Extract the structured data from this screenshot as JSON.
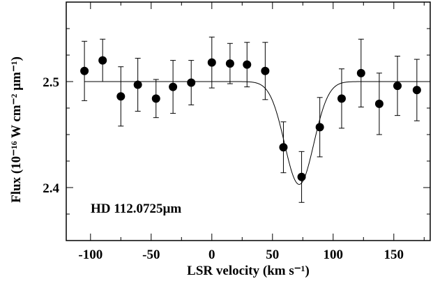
{
  "chart_data": {
    "type": "scatter",
    "title": "",
    "xlabel": "LSR velocity (km s⁻¹)",
    "ylabel": "Flux (10⁻¹⁶ W cm⁻² µm⁻¹)",
    "annotation": "HD 112.0725µm",
    "xlim": [
      -120,
      180
    ],
    "ylim": [
      2.35,
      2.575
    ],
    "x_ticks": [
      -100,
      -50,
      0,
      50,
      100,
      150
    ],
    "x_tick_labels": [
      "-100",
      "-50",
      "0",
      "50",
      "100",
      "150"
    ],
    "y_ticks": [
      2.4,
      2.5
    ],
    "y_tick_labels": [
      "2.4",
      "2.5"
    ],
    "grid": false,
    "legend": "none",
    "colors": {
      "marker": "#000000",
      "fit": "#000000",
      "axes": "#000000"
    },
    "series": [
      {
        "type": "points_with_errorbars",
        "x": [
          -105,
          -90,
          -75,
          -61,
          -46,
          -32,
          -17,
          0,
          15,
          29,
          44,
          59,
          74,
          89,
          107,
          123,
          138,
          153,
          169
        ],
        "y": [
          2.51,
          2.52,
          2.486,
          2.497,
          2.484,
          2.495,
          2.499,
          2.518,
          2.517,
          2.516,
          2.51,
          2.438,
          2.41,
          2.457,
          2.484,
          2.508,
          2.479,
          2.496,
          2.492
        ],
        "err": [
          0.028,
          0.02,
          0.028,
          0.025,
          0.018,
          0.025,
          0.021,
          0.024,
          0.019,
          0.021,
          0.027,
          0.024,
          0.024,
          0.028,
          0.028,
          0.032,
          0.029,
          0.028,
          0.029
        ]
      },
      {
        "type": "fit_line",
        "model": "gaussian_absorption",
        "continuum": 2.5,
        "depth": 0.097,
        "center": 72,
        "sigma": 12,
        "x_range": [
          -105,
          178
        ]
      }
    ]
  }
}
